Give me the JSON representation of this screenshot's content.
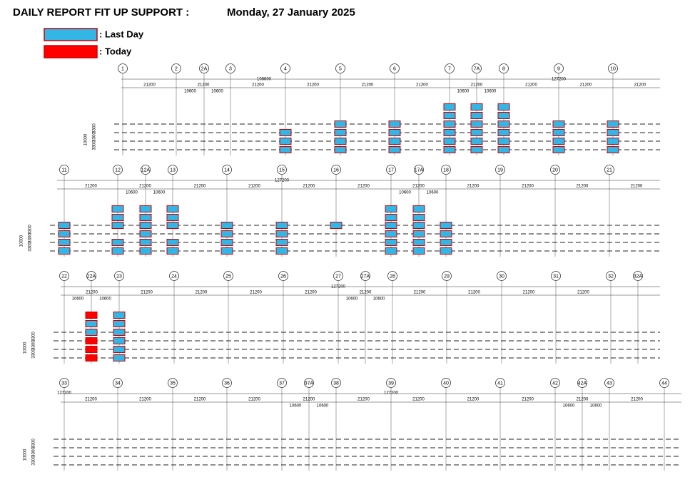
{
  "header": {
    "title": "DAILY REPORT FIT UP SUPPORT :",
    "date": "Monday, 27 January 2025"
  },
  "legend": [
    {
      "label": ": Last Day",
      "color": "#33b5e5"
    },
    {
      "label": ": Today",
      "color": "#ff0000"
    }
  ],
  "strips": [
    {
      "grids": [
        "1",
        "2",
        "2A",
        "3",
        "4",
        "5",
        "6",
        "7",
        "7A",
        "8",
        "9",
        "10"
      ],
      "overall": [
        "108600",
        "127200"
      ],
      "spans": [
        "21200",
        "21200",
        "21200",
        "21200",
        "21200",
        "21200",
        "21200",
        "21200",
        "21200",
        "21200"
      ],
      "half_spans": [
        "10600",
        "10600",
        "10600",
        "10600"
      ],
      "height": "10000",
      "row_dims": [
        "3300",
        "3300",
        "3300"
      ]
    },
    {
      "grids": [
        "11",
        "12",
        "12A",
        "13",
        "14",
        "15",
        "16",
        "17",
        "17A",
        "18",
        "19",
        "20",
        "21"
      ],
      "overall": [
        "127200"
      ],
      "spans": [
        "21200",
        "21200",
        "21200",
        "21200",
        "21200",
        "21200",
        "21200",
        "21200",
        "21200",
        "21200",
        "21200"
      ],
      "half_spans": [
        "10600",
        "10600",
        "10600",
        "10600"
      ],
      "height": "10000",
      "row_dims": [
        "3300",
        "3300",
        "3300"
      ]
    },
    {
      "grids": [
        "22",
        "22A",
        "23",
        "24",
        "25",
        "26",
        "27",
        "27A",
        "28",
        "29",
        "30",
        "31",
        "32",
        "32A"
      ],
      "overall": [
        "127200"
      ],
      "spans": [
        "21200",
        "21200",
        "21200",
        "21200",
        "21200",
        "21200",
        "21200",
        "21200",
        "21200",
        "21200"
      ],
      "half_spans": [
        "10600",
        "10600",
        "10600",
        "10600"
      ],
      "height": "10000",
      "row_dims": [
        "3300",
        "3300",
        "3300"
      ]
    },
    {
      "grids": [
        "33",
        "34",
        "35",
        "36",
        "37",
        "37A",
        "38",
        "39",
        "40",
        "41",
        "42",
        "42A",
        "43",
        "44"
      ],
      "overall": [
        "127200",
        "127200"
      ],
      "spans": [
        "21200",
        "21200",
        "21200",
        "21200",
        "21200",
        "21200",
        "21200",
        "21200",
        "21200",
        "21200",
        "21200"
      ],
      "half_spans": [
        "10600",
        "10600",
        "10600",
        "10600"
      ],
      "height": "10000",
      "row_dims": [
        "3300",
        "3300",
        "3300"
      ]
    }
  ]
}
